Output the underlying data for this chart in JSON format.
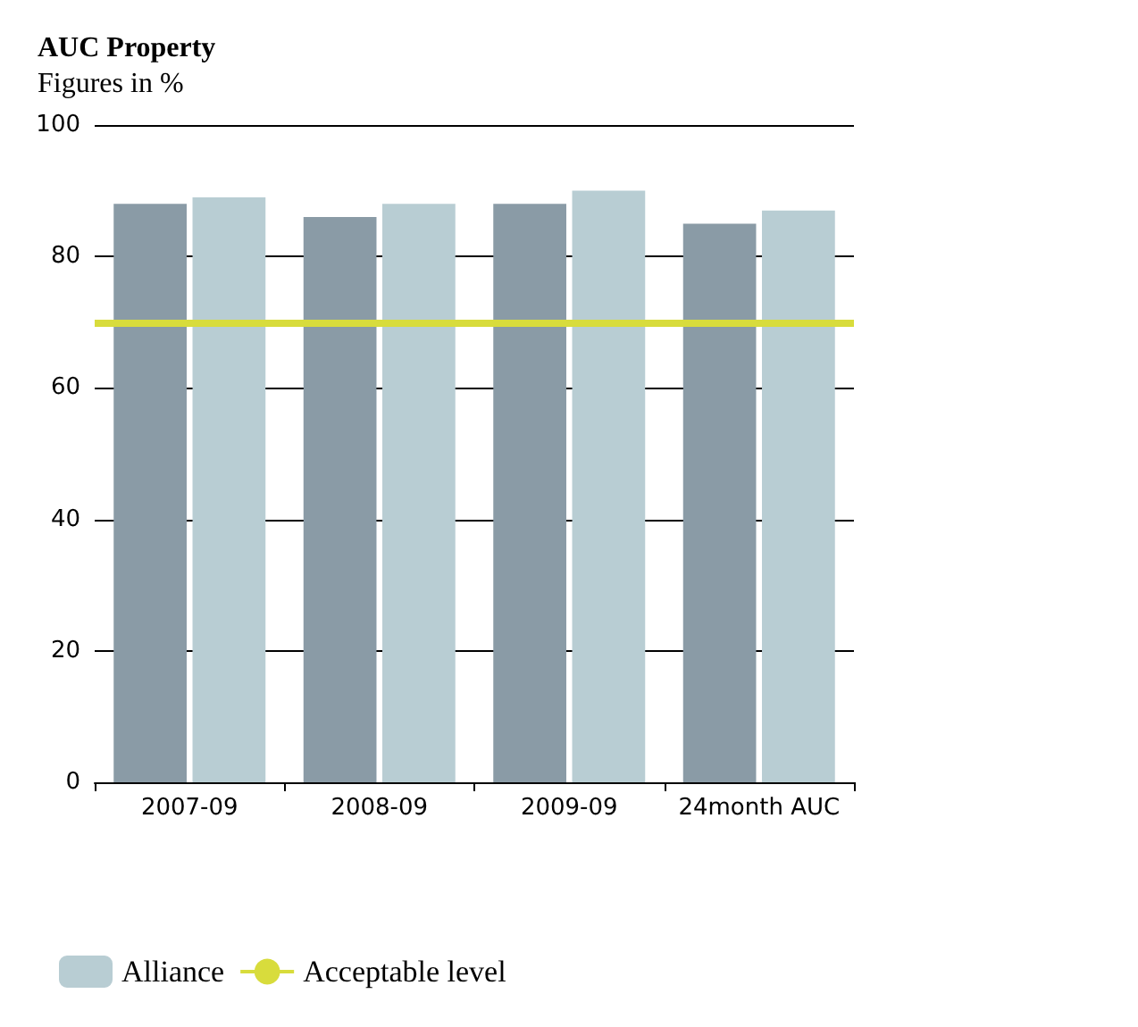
{
  "chart_data": {
    "type": "bar",
    "title": "AUC Property",
    "subtitle": "Figures in %",
    "categories": [
      "2007-09",
      "2008-09",
      "2009-09",
      "24month AUC"
    ],
    "series": [
      {
        "color": "#8a9ba6",
        "values": [
          88,
          86,
          88,
          85
        ]
      },
      {
        "name": "Alliance",
        "color": "#b8cdd3",
        "values": [
          89,
          88,
          90,
          87
        ]
      }
    ],
    "ylim": [
      0,
      100
    ],
    "yticks": [
      0,
      20,
      40,
      60,
      80,
      100
    ],
    "grid": "y",
    "legend": "bottom",
    "ref_lines": [
      {
        "axis": "y",
        "value": 70,
        "label": "Acceptable level",
        "color": "#d8dc3c"
      }
    ]
  }
}
